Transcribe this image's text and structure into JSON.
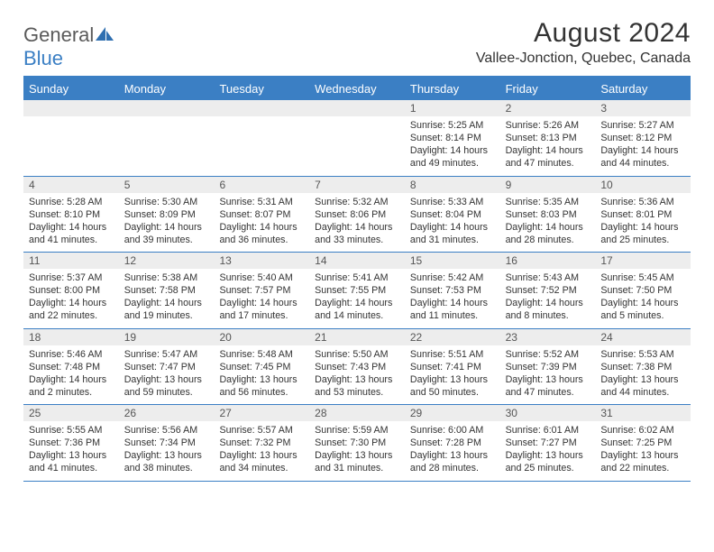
{
  "logo": {
    "text1": "General",
    "text2": "Blue"
  },
  "title": "August 2024",
  "location": "Vallee-Jonction, Quebec, Canada",
  "colors": {
    "accent": "#3b7fc4",
    "daynum_bg": "#ededed",
    "text": "#333333",
    "logo_gray": "#5a5a5a"
  },
  "weekdays": [
    "Sunday",
    "Monday",
    "Tuesday",
    "Wednesday",
    "Thursday",
    "Friday",
    "Saturday"
  ],
  "weeks": [
    [
      {
        "n": "",
        "sr": "",
        "ss": "",
        "dl": ""
      },
      {
        "n": "",
        "sr": "",
        "ss": "",
        "dl": ""
      },
      {
        "n": "",
        "sr": "",
        "ss": "",
        "dl": ""
      },
      {
        "n": "",
        "sr": "",
        "ss": "",
        "dl": ""
      },
      {
        "n": "1",
        "sr": "5:25 AM",
        "ss": "8:14 PM",
        "dl": "14 hours and 49 minutes."
      },
      {
        "n": "2",
        "sr": "5:26 AM",
        "ss": "8:13 PM",
        "dl": "14 hours and 47 minutes."
      },
      {
        "n": "3",
        "sr": "5:27 AM",
        "ss": "8:12 PM",
        "dl": "14 hours and 44 minutes."
      }
    ],
    [
      {
        "n": "4",
        "sr": "5:28 AM",
        "ss": "8:10 PM",
        "dl": "14 hours and 41 minutes."
      },
      {
        "n": "5",
        "sr": "5:30 AM",
        "ss": "8:09 PM",
        "dl": "14 hours and 39 minutes."
      },
      {
        "n": "6",
        "sr": "5:31 AM",
        "ss": "8:07 PM",
        "dl": "14 hours and 36 minutes."
      },
      {
        "n": "7",
        "sr": "5:32 AM",
        "ss": "8:06 PM",
        "dl": "14 hours and 33 minutes."
      },
      {
        "n": "8",
        "sr": "5:33 AM",
        "ss": "8:04 PM",
        "dl": "14 hours and 31 minutes."
      },
      {
        "n": "9",
        "sr": "5:35 AM",
        "ss": "8:03 PM",
        "dl": "14 hours and 28 minutes."
      },
      {
        "n": "10",
        "sr": "5:36 AM",
        "ss": "8:01 PM",
        "dl": "14 hours and 25 minutes."
      }
    ],
    [
      {
        "n": "11",
        "sr": "5:37 AM",
        "ss": "8:00 PM",
        "dl": "14 hours and 22 minutes."
      },
      {
        "n": "12",
        "sr": "5:38 AM",
        "ss": "7:58 PM",
        "dl": "14 hours and 19 minutes."
      },
      {
        "n": "13",
        "sr": "5:40 AM",
        "ss": "7:57 PM",
        "dl": "14 hours and 17 minutes."
      },
      {
        "n": "14",
        "sr": "5:41 AM",
        "ss": "7:55 PM",
        "dl": "14 hours and 14 minutes."
      },
      {
        "n": "15",
        "sr": "5:42 AM",
        "ss": "7:53 PM",
        "dl": "14 hours and 11 minutes."
      },
      {
        "n": "16",
        "sr": "5:43 AM",
        "ss": "7:52 PM",
        "dl": "14 hours and 8 minutes."
      },
      {
        "n": "17",
        "sr": "5:45 AM",
        "ss": "7:50 PM",
        "dl": "14 hours and 5 minutes."
      }
    ],
    [
      {
        "n": "18",
        "sr": "5:46 AM",
        "ss": "7:48 PM",
        "dl": "14 hours and 2 minutes."
      },
      {
        "n": "19",
        "sr": "5:47 AM",
        "ss": "7:47 PM",
        "dl": "13 hours and 59 minutes."
      },
      {
        "n": "20",
        "sr": "5:48 AM",
        "ss": "7:45 PM",
        "dl": "13 hours and 56 minutes."
      },
      {
        "n": "21",
        "sr": "5:50 AM",
        "ss": "7:43 PM",
        "dl": "13 hours and 53 minutes."
      },
      {
        "n": "22",
        "sr": "5:51 AM",
        "ss": "7:41 PM",
        "dl": "13 hours and 50 minutes."
      },
      {
        "n": "23",
        "sr": "5:52 AM",
        "ss": "7:39 PM",
        "dl": "13 hours and 47 minutes."
      },
      {
        "n": "24",
        "sr": "5:53 AM",
        "ss": "7:38 PM",
        "dl": "13 hours and 44 minutes."
      }
    ],
    [
      {
        "n": "25",
        "sr": "5:55 AM",
        "ss": "7:36 PM",
        "dl": "13 hours and 41 minutes."
      },
      {
        "n": "26",
        "sr": "5:56 AM",
        "ss": "7:34 PM",
        "dl": "13 hours and 38 minutes."
      },
      {
        "n": "27",
        "sr": "5:57 AM",
        "ss": "7:32 PM",
        "dl": "13 hours and 34 minutes."
      },
      {
        "n": "28",
        "sr": "5:59 AM",
        "ss": "7:30 PM",
        "dl": "13 hours and 31 minutes."
      },
      {
        "n": "29",
        "sr": "6:00 AM",
        "ss": "7:28 PM",
        "dl": "13 hours and 28 minutes."
      },
      {
        "n": "30",
        "sr": "6:01 AM",
        "ss": "7:27 PM",
        "dl": "13 hours and 25 minutes."
      },
      {
        "n": "31",
        "sr": "6:02 AM",
        "ss": "7:25 PM",
        "dl": "13 hours and 22 minutes."
      }
    ]
  ],
  "labels": {
    "sunrise": "Sunrise:",
    "sunset": "Sunset:",
    "daylight": "Daylight:"
  }
}
